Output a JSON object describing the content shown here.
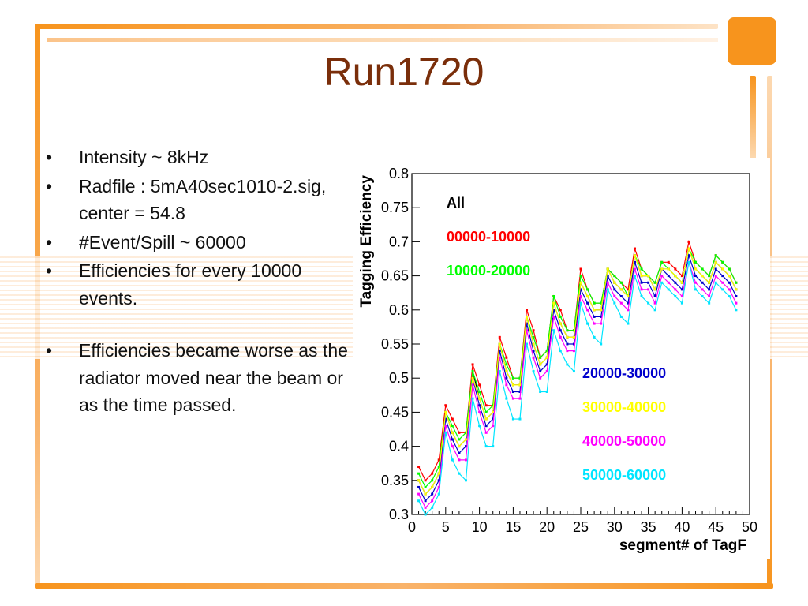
{
  "slide": {
    "title": "Run1720",
    "bullets": [
      {
        "marker": "•",
        "text": "Intensity ~ 8kHz"
      },
      {
        "marker": "•",
        "text": "Radfile : 5mA40sec1010-2.sig, center = 54.8"
      },
      {
        "marker": "•",
        "text": "#Event/Spill ~ 60000"
      },
      {
        "marker": "•",
        "text": "Efficiencies for every 10000 events."
      },
      {
        "marker": "•",
        "text": "Efficiencies became worse as the radiator moved near the beam or as the time passed."
      }
    ],
    "colors": {
      "accent": "#f7941d",
      "title": "#7a2e0a"
    }
  },
  "chart_data": {
    "type": "line",
    "xlabel": "segment# of TagF",
    "ylabel": "Tagging Efficiency",
    "xlim": [
      0,
      50
    ],
    "ylim": [
      0.3,
      0.8
    ],
    "xticks": [
      0,
      5,
      10,
      15,
      20,
      25,
      30,
      35,
      40,
      45,
      50
    ],
    "yticks": [
      0.3,
      0.35,
      0.4,
      0.45,
      0.5,
      0.55,
      0.6,
      0.65,
      0.7,
      0.75,
      0.8
    ],
    "grid": false,
    "legend_position": "top-left and middle-right",
    "x": [
      1,
      2,
      3,
      4,
      5,
      6,
      7,
      8,
      9,
      10,
      11,
      12,
      13,
      14,
      15,
      16,
      17,
      18,
      19,
      20,
      21,
      22,
      23,
      24,
      25,
      26,
      27,
      28,
      29,
      30,
      31,
      32,
      33,
      34,
      35,
      36,
      37,
      38,
      39,
      40,
      41,
      42,
      43,
      44,
      45,
      46,
      47,
      48
    ],
    "series": [
      {
        "name": "All",
        "color": "#000000",
        "values": [
          0.35,
          0.33,
          0.34,
          0.36,
          0.45,
          0.42,
          0.4,
          0.41,
          0.51,
          0.47,
          0.44,
          0.45,
          0.55,
          0.51,
          0.49,
          0.49,
          0.59,
          0.55,
          0.52,
          0.53,
          0.61,
          0.58,
          0.56,
          0.56,
          0.64,
          0.62,
          0.6,
          0.6,
          0.66,
          0.64,
          0.63,
          0.62,
          0.68,
          0.65,
          0.65,
          0.63,
          0.66,
          0.66,
          0.65,
          0.64,
          0.69,
          0.66,
          0.65,
          0.64,
          0.67,
          0.66,
          0.65,
          0.63
        ]
      },
      {
        "name": "00000-10000",
        "color": "#ff0000",
        "values": [
          0.37,
          0.35,
          0.36,
          0.38,
          0.46,
          0.44,
          0.42,
          0.42,
          0.52,
          0.49,
          0.46,
          0.46,
          0.56,
          0.53,
          0.5,
          0.5,
          0.6,
          0.57,
          0.53,
          0.54,
          0.62,
          0.6,
          0.57,
          0.57,
          0.66,
          0.63,
          0.61,
          0.61,
          0.66,
          0.65,
          0.64,
          0.63,
          0.69,
          0.66,
          0.65,
          0.64,
          0.67,
          0.67,
          0.66,
          0.65,
          0.7,
          0.67,
          0.66,
          0.65,
          0.68,
          0.67,
          0.66,
          0.64
        ]
      },
      {
        "name": "10000-20000",
        "color": "#00ff00",
        "values": [
          0.36,
          0.34,
          0.35,
          0.37,
          0.45,
          0.43,
          0.41,
          0.42,
          0.51,
          0.48,
          0.45,
          0.46,
          0.55,
          0.52,
          0.5,
          0.5,
          0.59,
          0.56,
          0.53,
          0.54,
          0.62,
          0.59,
          0.57,
          0.57,
          0.65,
          0.63,
          0.61,
          0.61,
          0.66,
          0.65,
          0.64,
          0.62,
          0.68,
          0.66,
          0.65,
          0.64,
          0.67,
          0.66,
          0.65,
          0.64,
          0.69,
          0.67,
          0.66,
          0.65,
          0.68,
          0.67,
          0.66,
          0.64
        ]
      },
      {
        "name": "20000-30000",
        "color": "#0000cc",
        "values": [
          0.34,
          0.32,
          0.33,
          0.35,
          0.44,
          0.41,
          0.39,
          0.4,
          0.5,
          0.46,
          0.43,
          0.44,
          0.54,
          0.5,
          0.48,
          0.48,
          0.58,
          0.54,
          0.51,
          0.52,
          0.6,
          0.57,
          0.55,
          0.55,
          0.63,
          0.61,
          0.59,
          0.59,
          0.65,
          0.63,
          0.62,
          0.61,
          0.67,
          0.64,
          0.64,
          0.62,
          0.66,
          0.65,
          0.64,
          0.63,
          0.68,
          0.65,
          0.64,
          0.63,
          0.66,
          0.65,
          0.64,
          0.62
        ]
      },
      {
        "name": "30000-40000",
        "color": "#ffff00",
        "values": [
          0.35,
          0.33,
          0.34,
          0.36,
          0.45,
          0.42,
          0.4,
          0.41,
          0.5,
          0.47,
          0.44,
          0.45,
          0.55,
          0.51,
          0.49,
          0.49,
          0.59,
          0.55,
          0.52,
          0.53,
          0.61,
          0.58,
          0.56,
          0.56,
          0.64,
          0.62,
          0.6,
          0.6,
          0.66,
          0.64,
          0.63,
          0.62,
          0.68,
          0.65,
          0.65,
          0.63,
          0.66,
          0.66,
          0.65,
          0.64,
          0.69,
          0.66,
          0.65,
          0.64,
          0.67,
          0.66,
          0.65,
          0.63
        ]
      },
      {
        "name": "40000-50000",
        "color": "#ff00ff",
        "values": [
          0.33,
          0.31,
          0.32,
          0.34,
          0.43,
          0.4,
          0.38,
          0.38,
          0.49,
          0.45,
          0.42,
          0.43,
          0.53,
          0.49,
          0.47,
          0.47,
          0.57,
          0.53,
          0.5,
          0.51,
          0.59,
          0.56,
          0.54,
          0.54,
          0.62,
          0.6,
          0.58,
          0.58,
          0.64,
          0.62,
          0.61,
          0.6,
          0.66,
          0.63,
          0.63,
          0.61,
          0.65,
          0.64,
          0.63,
          0.62,
          0.67,
          0.64,
          0.63,
          0.62,
          0.65,
          0.64,
          0.63,
          0.61
        ]
      },
      {
        "name": "50000-60000",
        "color": "#00e5ff",
        "values": [
          0.32,
          0.3,
          0.31,
          0.33,
          0.42,
          0.38,
          0.36,
          0.35,
          0.47,
          0.43,
          0.4,
          0.4,
          0.51,
          0.47,
          0.44,
          0.44,
          0.55,
          0.51,
          0.48,
          0.48,
          0.57,
          0.54,
          0.52,
          0.51,
          0.61,
          0.58,
          0.56,
          0.55,
          0.63,
          0.61,
          0.59,
          0.58,
          0.65,
          0.62,
          0.61,
          0.6,
          0.64,
          0.63,
          0.62,
          0.61,
          0.67,
          0.63,
          0.62,
          0.61,
          0.64,
          0.63,
          0.62,
          0.6
        ]
      }
    ]
  }
}
